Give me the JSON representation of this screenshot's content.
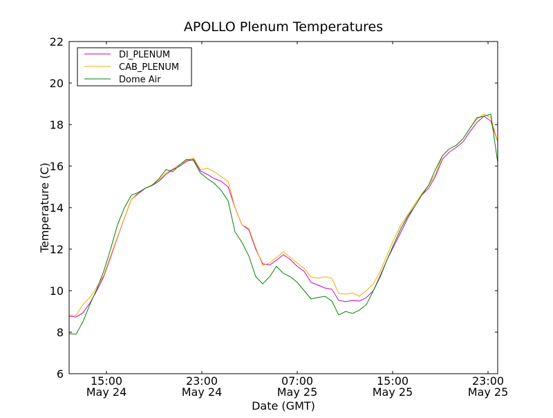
{
  "chart_data": {
    "type": "line",
    "title": "APOLLO Plenum Temperatures",
    "xlabel": "Date (GMT)",
    "ylabel": "Temperature (C)",
    "xlim": [
      11.87,
      47.81
    ],
    "ylim": [
      6,
      22
    ],
    "grid": false,
    "legend_position": "top-left",
    "yticks": [
      6,
      8,
      10,
      12,
      14,
      16,
      18,
      20,
      22
    ],
    "ytick_labels": [
      "6",
      "8",
      "10",
      "12",
      "14",
      "16",
      "18",
      "20",
      "22"
    ],
    "xticks": [
      15,
      23,
      31,
      39,
      47
    ],
    "xtick_labels": [
      {
        "time": "15:00",
        "date": "May 24"
      },
      {
        "time": "23:00",
        "date": "May 24"
      },
      {
        "time": "07:00",
        "date": "May 25"
      },
      {
        "time": "15:00",
        "date": "May 25"
      },
      {
        "time": "23:00",
        "date": "May 25"
      }
    ],
    "x_hours": [
      11.87,
      12.45,
      13.03,
      13.61,
      14.19,
      14.77,
      15.35,
      15.93,
      16.51,
      17.09,
      17.67,
      18.25,
      18.83,
      19.41,
      19.99,
      20.57,
      21.15,
      21.72,
      22.3,
      22.88,
      23.46,
      24.04,
      24.62,
      25.2,
      25.78,
      26.36,
      26.94,
      27.52,
      28.1,
      28.68,
      29.26,
      29.84,
      30.42,
      31.0,
      31.58,
      32.16,
      32.74,
      33.32,
      33.9,
      34.48,
      35.06,
      35.64,
      36.22,
      36.8,
      37.38,
      37.96,
      38.54,
      39.12,
      39.7,
      40.28,
      40.86,
      41.44,
      42.01,
      42.59,
      43.17,
      43.75,
      44.33,
      44.91,
      45.49,
      46.07,
      46.65,
      47.23,
      47.81
    ],
    "series": [
      {
        "name": "DI_PLENUM",
        "color": "#bf00bf",
        "values": [
          8.77,
          8.73,
          8.93,
          9.4,
          10.0,
          10.67,
          11.6,
          12.57,
          13.5,
          14.4,
          14.67,
          14.93,
          15.07,
          15.27,
          15.6,
          15.83,
          16.0,
          16.23,
          16.33,
          15.77,
          15.6,
          15.4,
          15.27,
          15.0,
          14.0,
          13.17,
          12.93,
          12.0,
          11.3,
          11.23,
          11.47,
          11.73,
          11.5,
          11.17,
          10.93,
          10.4,
          10.27,
          10.13,
          10.07,
          9.53,
          9.47,
          9.53,
          9.5,
          9.67,
          10.0,
          10.73,
          11.5,
          12.17,
          12.83,
          13.5,
          14.07,
          14.6,
          14.93,
          15.5,
          16.33,
          16.67,
          16.9,
          17.17,
          17.67,
          18.1,
          18.4,
          18.17,
          17.17
        ]
      },
      {
        "name": "CAB_PLENUM",
        "color": "#ffa500",
        "values": [
          8.83,
          8.8,
          9.33,
          9.67,
          10.17,
          10.73,
          11.67,
          12.6,
          13.5,
          14.4,
          14.73,
          14.93,
          15.1,
          15.33,
          15.67,
          15.87,
          16.07,
          16.27,
          16.4,
          15.83,
          15.9,
          15.73,
          15.5,
          15.27,
          14.0,
          13.17,
          13.0,
          12.07,
          11.23,
          11.33,
          11.6,
          11.87,
          11.6,
          11.33,
          11.07,
          10.67,
          10.6,
          10.67,
          10.6,
          9.87,
          9.83,
          9.9,
          9.73,
          10.0,
          10.33,
          10.93,
          11.73,
          12.5,
          13.17,
          13.67,
          14.17,
          14.67,
          15.07,
          15.6,
          16.5,
          16.83,
          17.0,
          17.33,
          17.83,
          18.27,
          18.5,
          18.33,
          17.17
        ]
      },
      {
        "name": "Dome Air",
        "color": "#008000",
        "values": [
          7.93,
          7.9,
          8.5,
          9.33,
          10.07,
          10.93,
          12.0,
          13.17,
          14.0,
          14.6,
          14.73,
          14.93,
          15.07,
          15.4,
          15.83,
          15.73,
          16.07,
          16.33,
          16.27,
          15.67,
          15.4,
          15.17,
          14.83,
          14.33,
          12.83,
          12.33,
          11.67,
          10.67,
          10.33,
          10.67,
          11.17,
          10.83,
          10.67,
          10.4,
          10.0,
          9.6,
          9.67,
          9.73,
          9.5,
          8.83,
          9.0,
          8.9,
          9.07,
          9.33,
          10.0,
          10.67,
          11.5,
          12.27,
          13.0,
          13.6,
          14.07,
          14.6,
          15.07,
          15.83,
          16.5,
          16.83,
          17.0,
          17.33,
          17.83,
          18.33,
          18.4,
          18.5,
          16.17
        ]
      }
    ]
  }
}
